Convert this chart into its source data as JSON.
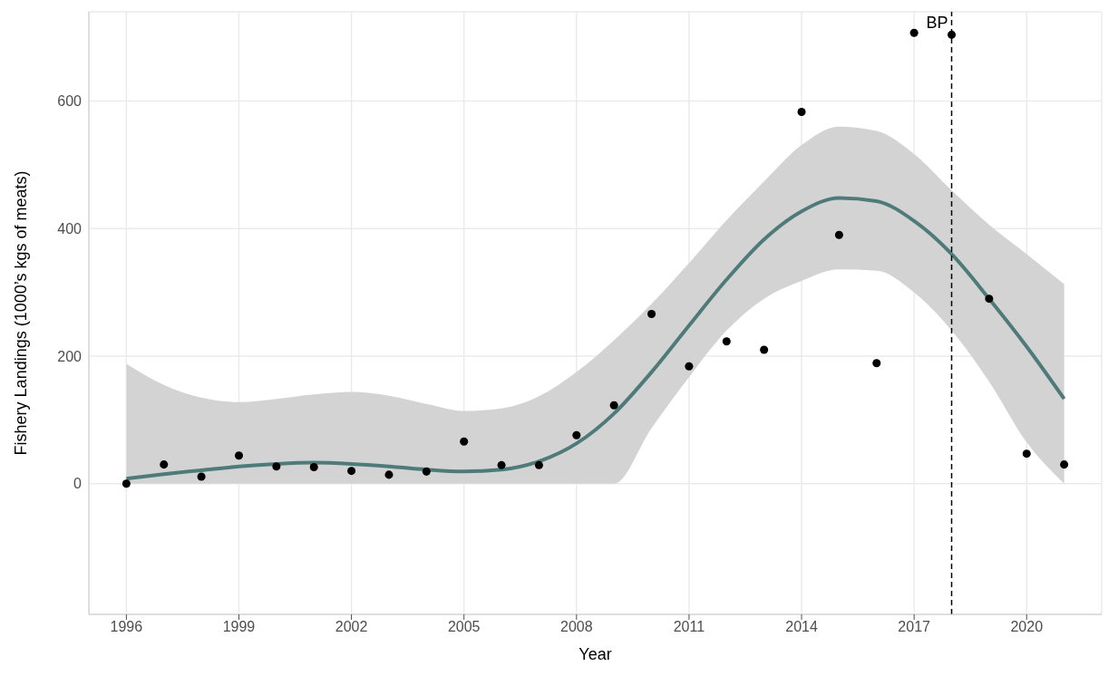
{
  "chart_data": {
    "type": "scatter",
    "xlabel": "Year",
    "ylabel": "Fishery Landings (1000’s kgs of meats)",
    "x": [
      1996,
      1997,
      1998,
      1999,
      2000,
      2001,
      2002,
      2003,
      2004,
      2005,
      2006,
      2007,
      2008,
      2009,
      2010,
      2011,
      2012,
      2013,
      2014,
      2015,
      2016,
      2017,
      2018,
      2019,
      2020,
      2021
    ],
    "series": [
      {
        "type": "line",
        "color": "#4e7b79",
        "marker": "none",
        "line_style": "solid",
        "values": [
          8,
          15,
          21,
          27,
          31,
          33,
          31,
          27,
          22,
          19,
          22,
          35,
          63,
          110,
          175,
          248,
          320,
          383,
          427,
          448,
          443,
          412,
          360,
          290,
          215,
          133
        ],
        "lower": [
          0,
          0,
          0,
          0,
          0,
          0,
          0,
          0,
          0,
          0,
          0,
          0,
          0,
          0,
          87,
          167,
          240,
          290,
          318,
          336,
          334,
          300,
          240,
          160,
          65,
          0
        ],
        "upper": [
          188,
          155,
          135,
          128,
          133,
          140,
          144,
          138,
          125,
          114,
          118,
          137,
          175,
          225,
          282,
          346,
          413,
          474,
          531,
          560,
          553,
          517,
          460,
          406,
          360,
          313
        ]
      },
      {
        "color": "#000000",
        "marker": "circle",
        "values": [
          0,
          30,
          11,
          44,
          27,
          26,
          20,
          14,
          19,
          66,
          29,
          29,
          76,
          123,
          266,
          184,
          223,
          210,
          583,
          390,
          189,
          707,
          704,
          290,
          47,
          30
        ]
      }
    ],
    "xlim": [
      1995,
      2022
    ],
    "xticks": [
      1996,
      1999,
      2002,
      2005,
      2008,
      2011,
      2014,
      2017,
      2020
    ],
    "ylim": [
      -205,
      740
    ],
    "yticks": [
      0,
      200,
      400,
      600
    ],
    "grid": true,
    "ref_lines": [
      {
        "axis": "x",
        "value": 2018,
        "label": "BP",
        "color": "#000000",
        "line_style": "dashed"
      }
    ]
  }
}
